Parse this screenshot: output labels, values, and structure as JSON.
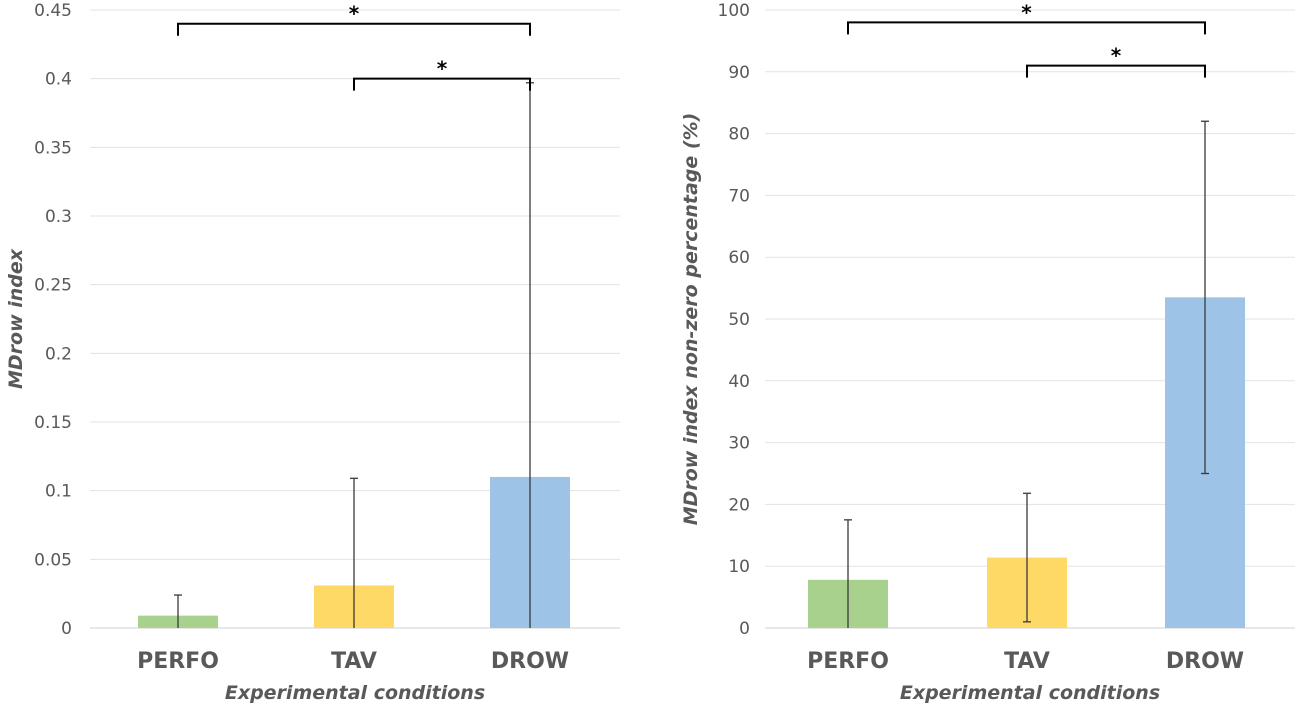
{
  "chart_data": [
    {
      "type": "bar",
      "title": "",
      "categories": [
        "PERFO",
        "TAV",
        "DROW"
      ],
      "values": [
        0.009,
        0.031,
        0.11
      ],
      "error_upper": [
        0.024,
        0.109,
        0.397
      ],
      "error_lower": [
        0.0,
        0.0,
        0.0
      ],
      "colors": [
        "#a9d18e",
        "#ffd966",
        "#9dc3e6"
      ],
      "xlabel": "Experimental conditions",
      "ylabel": "MDrow index",
      "ylim": [
        0,
        0.45
      ],
      "yticks": [
        "0",
        "0.05",
        "0.1",
        "0.15",
        "0.2",
        "0.25",
        "0.3",
        "0.35",
        "0.4",
        "0.45"
      ],
      "grid": true,
      "significance": [
        {
          "from": "PERFO",
          "to": "DROW",
          "level": 0.44,
          "label": "*"
        },
        {
          "from": "TAV",
          "to": "DROW",
          "level": 0.4,
          "label": "*"
        }
      ]
    },
    {
      "type": "bar",
      "title": "",
      "categories": [
        "PERFO",
        "TAV",
        "DROW"
      ],
      "values": [
        7.8,
        11.4,
        53.5
      ],
      "error_upper": [
        17.5,
        21.8,
        82.0
      ],
      "error_lower": [
        0.0,
        1.0,
        25.0
      ],
      "colors": [
        "#a9d18e",
        "#ffd966",
        "#9dc3e6"
      ],
      "xlabel": "Experimental conditions",
      "ylabel": "MDrow index non-zero percentage (%)",
      "ylim": [
        0,
        100
      ],
      "yticks": [
        "0",
        "10",
        "20",
        "30",
        "40",
        "50",
        "60",
        "70",
        "80",
        "90",
        "100"
      ],
      "grid": true,
      "significance": [
        {
          "from": "PERFO",
          "to": "DROW",
          "level": 98,
          "label": "*"
        },
        {
          "from": "TAV",
          "to": "DROW",
          "level": 91,
          "label": "*"
        }
      ]
    }
  ]
}
